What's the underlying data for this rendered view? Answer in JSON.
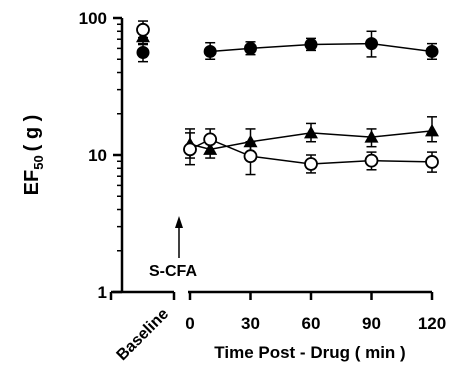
{
  "chart_data": {
    "type": "scatter",
    "yscale": "log",
    "ylim": [
      1,
      100
    ],
    "ylabel_main": "EF",
    "ylabel_sub": "50",
    "ylabel_unit": "( g )",
    "xlabel": "Time Post - Drug ( min )",
    "yticks": [
      {
        "value": 1,
        "label": "1"
      },
      {
        "value": 10,
        "label": "10"
      },
      {
        "value": 100,
        "label": "100"
      }
    ],
    "xticks": [
      {
        "value": 0,
        "label": "0"
      },
      {
        "value": 30,
        "label": "30"
      },
      {
        "value": 60,
        "label": "60"
      },
      {
        "value": 90,
        "label": "90"
      },
      {
        "value": 120,
        "label": "120"
      }
    ],
    "xlim": [
      0,
      120
    ],
    "baseline_label": "Baseline",
    "annotation": {
      "text": "S-CFA",
      "x": 0
    },
    "series": [
      {
        "marker": "filled-circle",
        "baseline": {
          "y": 56,
          "err": [
            48,
            65
          ]
        },
        "points": [
          {
            "x": 10,
            "y": 57,
            "err": [
              50,
              66
            ]
          },
          {
            "x": 30,
            "y": 60,
            "err": [
              54,
              67
            ]
          },
          {
            "x": 60,
            "y": 64,
            "err": [
              58,
              71
            ]
          },
          {
            "x": 90,
            "y": 65,
            "err": [
              52,
              80
            ]
          },
          {
            "x": 120,
            "y": 57,
            "err": [
              50,
              65
            ]
          }
        ]
      },
      {
        "marker": "filled-triangle",
        "baseline": {
          "y": 73,
          "err": [
            64,
            82
          ]
        },
        "points": [
          {
            "x": 0,
            "y": 12,
            "err": [
              9.5,
              15.5
            ]
          },
          {
            "x": 10,
            "y": 11,
            "err": [
              9.5,
              13
            ]
          },
          {
            "x": 30,
            "y": 12.5,
            "err": [
              10.5,
              15.5
            ]
          },
          {
            "x": 60,
            "y": 14.5,
            "err": [
              12.5,
              17
            ]
          },
          {
            "x": 90,
            "y": 13.5,
            "err": [
              11.5,
              15.5
            ]
          },
          {
            "x": 120,
            "y": 15,
            "err": [
              12.5,
              19
            ]
          }
        ]
      },
      {
        "marker": "open-circle",
        "baseline": {
          "y": 82,
          "err": [
            72,
            95
          ]
        },
        "points": [
          {
            "x": 0,
            "y": 11,
            "err": [
              8.5,
              14.5
            ]
          },
          {
            "x": 10,
            "y": 13,
            "err": [
              10.5,
              15.5
            ]
          },
          {
            "x": 30,
            "y": 9.8,
            "err": [
              7.2,
              12.5
            ]
          },
          {
            "x": 60,
            "y": 8.6,
            "err": [
              7.4,
              10
            ]
          },
          {
            "x": 90,
            "y": 9.1,
            "err": [
              7.8,
              10.5
            ]
          },
          {
            "x": 120,
            "y": 8.9,
            "err": [
              7.5,
              10.5
            ]
          }
        ]
      }
    ]
  }
}
